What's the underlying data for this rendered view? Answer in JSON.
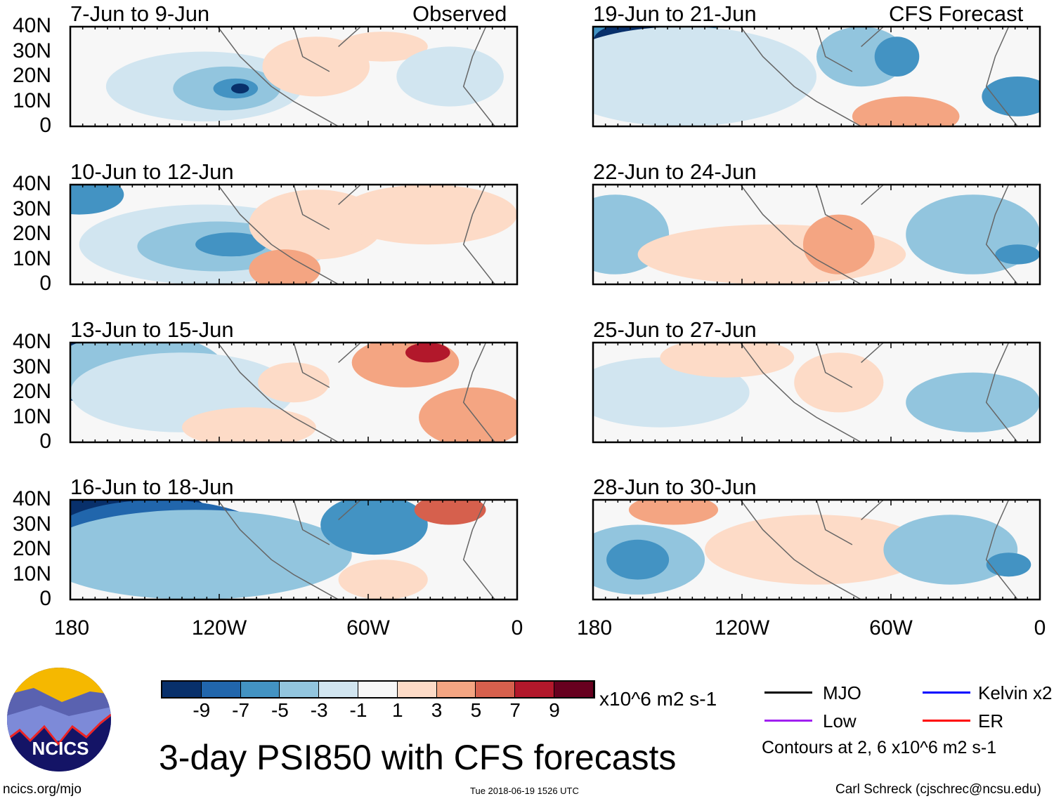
{
  "header": {
    "observed_label": "Observed",
    "forecast_label": "CFS Forecast"
  },
  "panels": {
    "observed": [
      {
        "title": "7-Jun to 9-Jun"
      },
      {
        "title": "10-Jun to 12-Jun"
      },
      {
        "title": "13-Jun to 15-Jun"
      },
      {
        "title": "16-Jun to 18-Jun"
      }
    ],
    "forecast": [
      {
        "title": "19-Jun to 21-Jun"
      },
      {
        "title": "22-Jun to 24-Jun"
      },
      {
        "title": "25-Jun to 27-Jun"
      },
      {
        "title": "28-Jun to 30-Jun"
      }
    ]
  },
  "axes": {
    "lat_labels": [
      "40N",
      "30N",
      "20N",
      "10N",
      "0"
    ],
    "lon_labels": [
      "180",
      "120W",
      "60W",
      "0"
    ]
  },
  "colorbar": {
    "colors": [
      "#08306b",
      "#2166ac",
      "#4393c3",
      "#92c5de",
      "#d1e5f0",
      "#f7f7f7",
      "#fddbc7",
      "#f4a582",
      "#d6604d",
      "#b2182b",
      "#67001f"
    ],
    "labels": [
      "-9",
      "-7",
      "-5",
      "-3",
      "-1",
      "1",
      "3",
      "5",
      "7",
      "9"
    ],
    "units": "x10^6 m2 s-1"
  },
  "legend": {
    "items": [
      {
        "label": "MJO",
        "color": "#000000"
      },
      {
        "label": "Kelvin x2",
        "color": "#0000ff"
      },
      {
        "label": "Low",
        "color": "#a020f0"
      },
      {
        "label": "ER",
        "color": "#ff0000"
      }
    ],
    "contours_note": "Contours at 2, 6 x10^6 m2 s-1"
  },
  "footer": {
    "title": "3-day PSI850 with CFS forecasts",
    "site": "ncics.org/mjo",
    "timestamp": "Tue 2018-06-19 1526 UTC",
    "author": "Carl Schreck (cjschrec@ncsu.edu)",
    "logo_text": "NCICS"
  }
}
